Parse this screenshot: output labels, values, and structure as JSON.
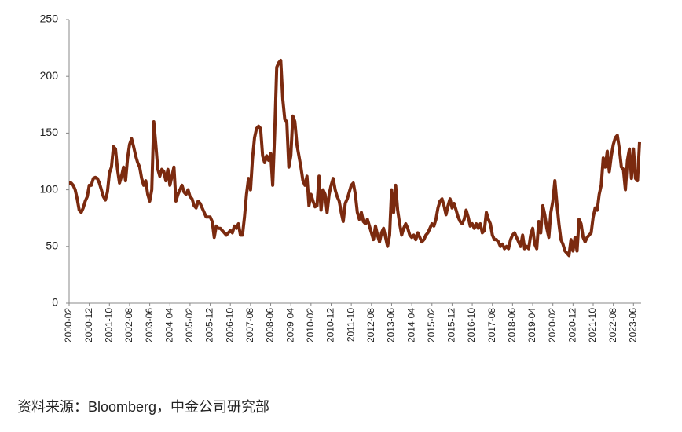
{
  "chart_data": {
    "type": "line",
    "source": "资料来源：Bloomberg，中金公司研究部",
    "categories": [
      "2000-02",
      null,
      null,
      null,
      null,
      null,
      null,
      null,
      null,
      null,
      "2000-12",
      null,
      null,
      null,
      null,
      null,
      null,
      null,
      null,
      null,
      "2001-10",
      null,
      null,
      null,
      null,
      null,
      null,
      null,
      null,
      null,
      "2002-08",
      null,
      null,
      null,
      null,
      null,
      null,
      null,
      null,
      null,
      "2003-06",
      null,
      null,
      null,
      null,
      null,
      null,
      null,
      null,
      null,
      "2004-04",
      null,
      null,
      null,
      null,
      null,
      null,
      null,
      null,
      null,
      "2005-02",
      null,
      null,
      null,
      null,
      null,
      null,
      null,
      null,
      null,
      "2005-12",
      null,
      null,
      null,
      null,
      null,
      null,
      null,
      null,
      null,
      "2006-10",
      null,
      null,
      null,
      null,
      null,
      null,
      null,
      null,
      null,
      "2007-08",
      null,
      null,
      null,
      null,
      null,
      null,
      null,
      null,
      null,
      "2008-06",
      null,
      null,
      null,
      null,
      null,
      null,
      null,
      null,
      null,
      "2009-04",
      null,
      null,
      null,
      null,
      null,
      null,
      null,
      null,
      null,
      "2010-02",
      null,
      null,
      null,
      null,
      null,
      null,
      null,
      null,
      null,
      "2010-12",
      null,
      null,
      null,
      null,
      null,
      null,
      null,
      null,
      null,
      "2011-10",
      null,
      null,
      null,
      null,
      null,
      null,
      null,
      null,
      null,
      "2012-08",
      null,
      null,
      null,
      null,
      null,
      null,
      null,
      null,
      null,
      "2013-06",
      null,
      null,
      null,
      null,
      null,
      null,
      null,
      null,
      null,
      "2014-04",
      null,
      null,
      null,
      null,
      null,
      null,
      null,
      null,
      null,
      "2015-02",
      null,
      null,
      null,
      null,
      null,
      null,
      null,
      null,
      null,
      "2015-12",
      null,
      null,
      null,
      null,
      null,
      null,
      null,
      null,
      null,
      "2016-10",
      null,
      null,
      null,
      null,
      null,
      null,
      null,
      null,
      null,
      "2017-08",
      null,
      null,
      null,
      null,
      null,
      null,
      null,
      null,
      null,
      "2018-06",
      null,
      null,
      null,
      null,
      null,
      null,
      null,
      null,
      null,
      "2019-04",
      null,
      null,
      null,
      null,
      null,
      null,
      null,
      null,
      null,
      "2020-02",
      null,
      null,
      null,
      null,
      null,
      null,
      null,
      null,
      null,
      "2020-12",
      null,
      null,
      null,
      null,
      null,
      null,
      null,
      null,
      null,
      "2021-10",
      null,
      null,
      null,
      null,
      null,
      null,
      null,
      null,
      null,
      "2022-08",
      null,
      null,
      null,
      null,
      null,
      null,
      null,
      null,
      null,
      "2023-06",
      null,
      null,
      null
    ],
    "values": [
      106,
      106,
      104,
      100,
      92,
      82,
      80,
      84,
      90,
      94,
      104,
      104,
      110,
      111,
      110,
      106,
      100,
      94,
      91,
      98,
      115,
      120,
      138,
      136,
      118,
      106,
      112,
      120,
      108,
      128,
      140,
      145,
      138,
      130,
      124,
      120,
      110,
      104,
      108,
      96,
      90,
      100,
      160,
      140,
      118,
      112,
      118,
      116,
      108,
      118,
      104,
      112,
      120,
      90,
      96,
      100,
      104,
      98,
      96,
      100,
      94,
      92,
      86,
      84,
      90,
      88,
      84,
      80,
      76,
      76,
      76,
      72,
      58,
      68,
      66,
      66,
      64,
      62,
      60,
      62,
      64,
      62,
      68,
      66,
      70,
      60,
      60,
      76,
      96,
      110,
      100,
      128,
      146,
      154,
      156,
      154,
      130,
      124,
      130,
      126,
      132,
      104,
      150,
      208,
      212,
      214,
      180,
      162,
      160,
      120,
      130,
      165,
      160,
      140,
      130,
      120,
      108,
      104,
      112,
      86,
      96,
      90,
      85,
      86,
      112,
      82,
      100,
      96,
      80,
      96,
      104,
      110,
      100,
      94,
      90,
      80,
      72,
      88,
      92,
      98,
      104,
      106,
      96,
      80,
      74,
      80,
      72,
      70,
      74,
      68,
      62,
      56,
      68,
      60,
      54,
      62,
      66,
      58,
      50,
      60,
      100,
      80,
      104,
      82,
      70,
      60,
      66,
      70,
      66,
      60,
      58,
      60,
      56,
      62,
      58,
      54,
      56,
      60,
      62,
      66,
      70,
      68,
      74,
      84,
      90,
      92,
      86,
      78,
      86,
      92,
      84,
      88,
      82,
      76,
      72,
      70,
      74,
      82,
      76,
      68,
      70,
      66,
      70,
      66,
      70,
      62,
      64,
      80,
      74,
      70,
      60,
      56,
      56,
      54,
      50,
      52,
      48,
      50,
      48,
      56,
      60,
      62,
      58,
      54,
      50,
      60,
      48,
      50,
      48,
      60,
      66,
      52,
      48,
      72,
      62,
      86,
      78,
      66,
      58,
      80,
      90,
      108,
      88,
      70,
      56,
      52,
      46,
      44,
      42,
      56,
      46,
      58,
      46,
      74,
      70,
      58,
      54,
      58,
      60,
      62,
      76,
      84,
      82,
      96,
      104,
      128,
      120,
      134,
      116,
      130,
      140,
      146,
      148,
      136,
      120,
      118,
      100,
      126,
      136,
      110,
      136,
      110,
      108,
      142
    ],
    "color": "#7b2a0f",
    "ylim": [
      0,
      250
    ],
    "yticks": [
      0,
      50,
      100,
      150,
      200,
      250
    ]
  }
}
